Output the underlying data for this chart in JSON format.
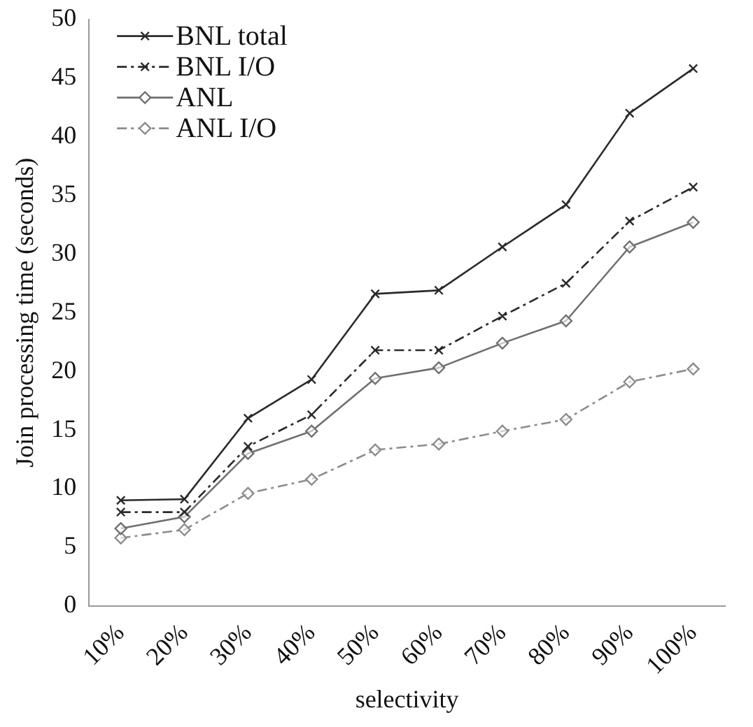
{
  "chart_data": {
    "type": "line",
    "xlabel": "selectivity",
    "ylabel": "Join processing time (seconds)",
    "categories": [
      "10%",
      "20%",
      "30%",
      "40%",
      "50%",
      "60%",
      "70%",
      "80%",
      "90%",
      "100%"
    ],
    "ylim": [
      0,
      50
    ],
    "yticks": [
      0,
      5,
      10,
      15,
      20,
      25,
      30,
      35,
      40,
      45,
      50
    ],
    "grid": false,
    "legend": "top left",
    "series": [
      {
        "name": "BNL total",
        "color": "#2a2a2a",
        "marker": "cross",
        "line_style": "solid",
        "values": [
          9.0,
          9.1,
          16.0,
          19.3,
          26.6,
          26.9,
          30.6,
          34.2,
          42.0,
          45.8
        ]
      },
      {
        "name": "BNL I/O",
        "color": "#2a2a2a",
        "marker": "cross",
        "line_style": "dashdot",
        "values": [
          8.0,
          8.0,
          13.6,
          16.3,
          21.8,
          21.8,
          24.7,
          27.5,
          32.8,
          35.7
        ]
      },
      {
        "name": "ANL",
        "color": "#707070",
        "marker": "diamond",
        "line_style": "solid",
        "values": [
          6.6,
          7.6,
          13.0,
          14.9,
          19.4,
          20.3,
          22.4,
          24.3,
          30.6,
          32.7
        ]
      },
      {
        "name": "ANL I/O",
        "color": "#8c8c8c",
        "marker": "diamond",
        "line_style": "dashdot",
        "values": [
          5.8,
          6.5,
          9.6,
          10.8,
          13.3,
          13.8,
          14.9,
          15.9,
          19.1,
          20.2
        ]
      }
    ]
  }
}
